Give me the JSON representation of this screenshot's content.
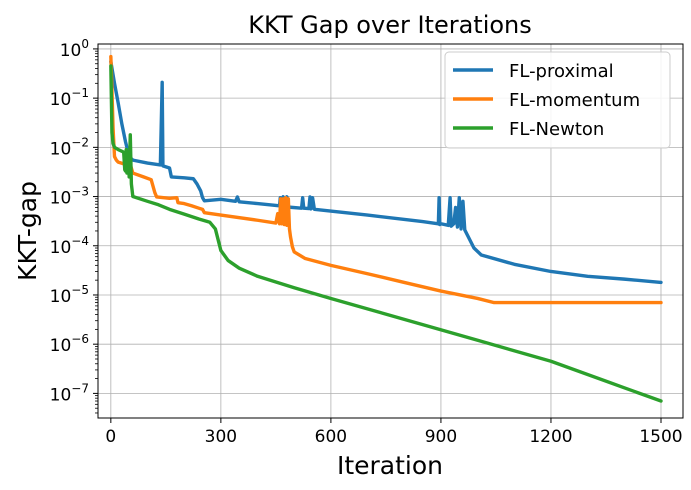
{
  "chart_data": {
    "type": "line",
    "title": "KKT Gap over Iterations",
    "xlabel": "Iteration",
    "ylabel": "KKT-gap",
    "yscale": "log",
    "xlim": [
      -35,
      1560
    ],
    "ylim_log10": [
      -7.5,
      0.1
    ],
    "grid": true,
    "legend_position": "upper right",
    "x_ticks": [
      {
        "value": 0,
        "label": "0"
      },
      {
        "value": 300,
        "label": "300"
      },
      {
        "value": 600,
        "label": "600"
      },
      {
        "value": 900,
        "label": "900"
      },
      {
        "value": 1200,
        "label": "1200"
      },
      {
        "value": 1500,
        "label": "1500"
      }
    ],
    "y_ticks": [
      {
        "value": 1,
        "label_base": "10",
        "label_exp": "0"
      },
      {
        "value": 0.1,
        "label_base": "10",
        "label_exp": "−1"
      },
      {
        "value": 0.01,
        "label_base": "10",
        "label_exp": "−2"
      },
      {
        "value": 0.001,
        "label_base": "10",
        "label_exp": "−3"
      },
      {
        "value": 0.0001,
        "label_base": "10",
        "label_exp": "−4"
      },
      {
        "value": 1e-05,
        "label_base": "10",
        "label_exp": "−5"
      },
      {
        "value": 1e-06,
        "label_base": "10",
        "label_exp": "−6"
      },
      {
        "value": 1e-07,
        "label_base": "10",
        "label_exp": "−7"
      }
    ],
    "series": [
      {
        "name": "FL-proximal",
        "color": "#1f77b4",
        "points": [
          [
            0,
            0.55
          ],
          [
            10,
            0.2
          ],
          [
            20,
            0.08
          ],
          [
            30,
            0.03
          ],
          [
            40,
            0.013
          ],
          [
            50,
            0.0065
          ],
          [
            60,
            0.0055
          ],
          [
            100,
            0.0048
          ],
          [
            135,
            0.0044
          ],
          [
            140,
            0.21
          ],
          [
            142,
            0.0042
          ],
          [
            160,
            0.0038
          ],
          [
            165,
            0.0025
          ],
          [
            200,
            0.0024
          ],
          [
            225,
            0.0023
          ],
          [
            235,
            0.0018
          ],
          [
            245,
            0.0013
          ],
          [
            250,
            0.00095
          ],
          [
            255,
            0.00082
          ],
          [
            300,
            0.00088
          ],
          [
            340,
            0.0008
          ],
          [
            345,
            0.00098
          ],
          [
            350,
            0.00078
          ],
          [
            400,
            0.00072
          ],
          [
            460,
            0.00065
          ],
          [
            462,
            0.00095
          ],
          [
            465,
            0.00063
          ],
          [
            470,
            0.00099
          ],
          [
            475,
            0.00062
          ],
          [
            480,
            0.00099
          ],
          [
            485,
            0.00061
          ],
          [
            520,
            0.00058
          ],
          [
            523,
            0.00095
          ],
          [
            526,
            0.00058
          ],
          [
            540,
            0.00057
          ],
          [
            543,
            0.00098
          ],
          [
            546,
            0.00056
          ],
          [
            550,
            0.00095
          ],
          [
            555,
            0.00055
          ],
          [
            700,
            0.00042
          ],
          [
            850,
            0.00031
          ],
          [
            893,
            0.00028
          ],
          [
            895,
            0.00095
          ],
          [
            897,
            0.00027
          ],
          [
            900,
            0.00028
          ],
          [
            920,
            0.00026
          ],
          [
            925,
            0.00095
          ],
          [
            928,
            0.00025
          ],
          [
            935,
            0.00028
          ],
          [
            940,
            0.0006
          ],
          [
            945,
            0.00024
          ],
          [
            950,
            0.00095
          ],
          [
            955,
            0.00022
          ],
          [
            960,
            0.0008
          ],
          [
            965,
            0.00021
          ],
          [
            975,
            0.00015
          ],
          [
            990,
            9e-05
          ],
          [
            1010,
            6.5e-05
          ],
          [
            1100,
            4.2e-05
          ],
          [
            1200,
            3e-05
          ],
          [
            1300,
            2.4e-05
          ],
          [
            1400,
            2.1e-05
          ],
          [
            1500,
            1.8e-05
          ]
        ]
      },
      {
        "name": "FL-momentum",
        "color": "#ff7f0e",
        "points": [
          [
            0,
            0.7
          ],
          [
            3,
            0.15
          ],
          [
            6,
            0.025
          ],
          [
            10,
            0.0065
          ],
          [
            15,
            0.0055
          ],
          [
            20,
            0.005
          ],
          [
            40,
            0.0045
          ],
          [
            55,
            0.004
          ],
          [
            60,
            0.003
          ],
          [
            90,
            0.0025
          ],
          [
            110,
            0.0022
          ],
          [
            120,
            0.0012
          ],
          [
            125,
            0.00098
          ],
          [
            160,
            0.00092
          ],
          [
            180,
            0.00095
          ],
          [
            183,
            0.00075
          ],
          [
            200,
            0.00072
          ],
          [
            220,
            0.00065
          ],
          [
            240,
            0.00058
          ],
          [
            250,
            0.00055
          ],
          [
            255,
            0.00047
          ],
          [
            300,
            0.00042
          ],
          [
            400,
            0.00033
          ],
          [
            450,
            0.00029
          ],
          [
            455,
            0.00045
          ],
          [
            460,
            0.00028
          ],
          [
            463,
            0.0009
          ],
          [
            466,
            0.00028
          ],
          [
            470,
            0.0009
          ],
          [
            473,
            0.00027
          ],
          [
            477,
            0.00095
          ],
          [
            480,
            0.00026
          ],
          [
            484,
            0.0009
          ],
          [
            487,
            0.00022
          ],
          [
            490,
            0.00015
          ],
          [
            495,
            9.5e-05
          ],
          [
            500,
            7.5e-05
          ],
          [
            530,
            5.5e-05
          ],
          [
            600,
            4e-05
          ],
          [
            700,
            2.7e-05
          ],
          [
            800,
            1.8e-05
          ],
          [
            900,
            1.2e-05
          ],
          [
            1000,
            8.5e-06
          ],
          [
            1045,
            7e-06
          ],
          [
            1200,
            7e-06
          ],
          [
            1500,
            7e-06
          ]
        ]
      },
      {
        "name": "FL-Newton",
        "color": "#2ca02c",
        "points": [
          [
            0,
            0.45
          ],
          [
            3,
            0.02
          ],
          [
            6,
            0.012
          ],
          [
            10,
            0.01
          ],
          [
            20,
            0.009
          ],
          [
            35,
            0.008
          ],
          [
            38,
            0.0035
          ],
          [
            40,
            0.0033
          ],
          [
            42,
            0.009
          ],
          [
            44,
            0.003
          ],
          [
            47,
            0.008
          ],
          [
            50,
            0.0025
          ],
          [
            53,
            0.018
          ],
          [
            56,
            0.0018
          ],
          [
            60,
            0.001
          ],
          [
            100,
            0.0008
          ],
          [
            130,
            0.00068
          ],
          [
            160,
            0.00055
          ],
          [
            200,
            0.00044
          ],
          [
            240,
            0.00035
          ],
          [
            270,
            0.0003
          ],
          [
            285,
            0.00022
          ],
          [
            300,
            8e-05
          ],
          [
            320,
            5e-05
          ],
          [
            350,
            3.5e-05
          ],
          [
            400,
            2.4e-05
          ],
          [
            500,
            1.4e-05
          ],
          [
            600,
            8.5e-06
          ],
          [
            800,
            3.2e-06
          ],
          [
            1000,
            1.2e-06
          ],
          [
            1200,
            4.5e-07
          ],
          [
            1400,
            1.3e-07
          ],
          [
            1500,
            7e-08
          ]
        ]
      }
    ]
  }
}
